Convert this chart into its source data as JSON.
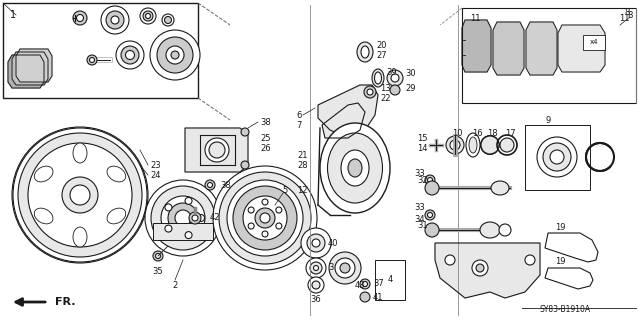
{
  "background_color": "#ffffff",
  "diagram_code": "SY83-B1910A",
  "fig_width": 6.38,
  "fig_height": 3.2,
  "dpi": 100,
  "line_color": "#1a1a1a",
  "line_width": 0.8,
  "gray_fill": "#cccccc",
  "light_gray": "#e8e8e8"
}
